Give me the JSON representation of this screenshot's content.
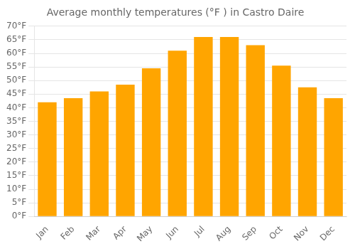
{
  "chart_data": {
    "type": "bar",
    "title": "Average monthly temperatures (°F ) in Castro Daire",
    "categories": [
      "Jan",
      "Feb",
      "Mar",
      "Apr",
      "May",
      "Jun",
      "Jul",
      "Aug",
      "Sep",
      "Oct",
      "Nov",
      "Dec"
    ],
    "values": [
      42,
      43.5,
      46,
      48.5,
      54.5,
      61,
      66,
      66,
      63,
      55.5,
      47.5,
      43.5
    ],
    "color": "#FFA500",
    "ylim": [
      0,
      70
    ],
    "yticks": [
      {
        "value": 0,
        "label": "0°F"
      },
      {
        "value": 5,
        "label": "5°F"
      },
      {
        "value": 10,
        "label": "10°F"
      },
      {
        "value": 15,
        "label": "15°F"
      },
      {
        "value": 20,
        "label": "20°F"
      },
      {
        "value": 25,
        "label": "25°F"
      },
      {
        "value": 30,
        "label": "30°F"
      },
      {
        "value": 35,
        "label": "35°F"
      },
      {
        "value": 40,
        "label": "40°F"
      },
      {
        "value": 45,
        "label": "45°F"
      },
      {
        "value": 50,
        "label": "50°F"
      },
      {
        "value": 55,
        "label": "55°F"
      },
      {
        "value": 60,
        "label": "60°F"
      },
      {
        "value": 65,
        "label": "65°F"
      },
      {
        "value": 70,
        "label": "70°F"
      }
    ],
    "grid": true
  }
}
